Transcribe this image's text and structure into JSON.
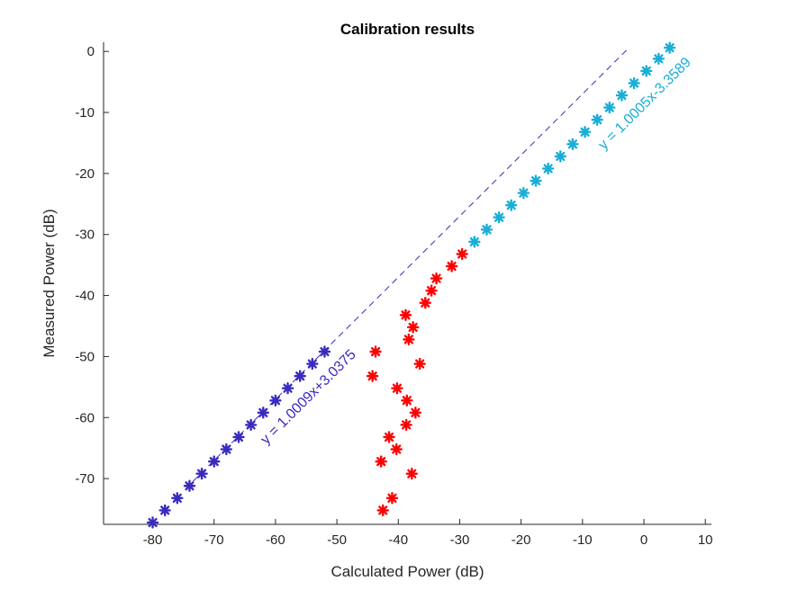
{
  "chart_data": {
    "type": "scatter",
    "title": "Calibration results",
    "xlabel": "Calculated Power (dB)",
    "ylabel": "Measured Power (dB)",
    "xlim": [
      -88,
      11
    ],
    "ylim": [
      -77.5,
      1.5
    ],
    "xticks": [
      -80,
      -70,
      -60,
      -50,
      -40,
      -30,
      -20,
      -10,
      0,
      10
    ],
    "yticks": [
      0,
      -10,
      -20,
      -30,
      -40,
      -50,
      -60,
      -70
    ],
    "grid": "minor-dotted",
    "legend": "none",
    "series": [
      {
        "color": "#3a2bbf",
        "marker": "asterisk",
        "x": [
          -80,
          -78,
          -76,
          -74,
          -72,
          -70,
          -68,
          -66,
          -64,
          -62,
          -60,
          -58,
          -56,
          -54,
          -52
        ],
        "y": [
          -77.2,
          -75.2,
          -73.2,
          -71.2,
          -69.2,
          -67.2,
          -65.2,
          -63.2,
          -61.2,
          -59.2,
          -57.2,
          -55.2,
          -53.2,
          -51.2,
          -49.2
        ]
      },
      {
        "color": "#ff0000",
        "marker": "asterisk",
        "x": [
          -42.5,
          -41,
          -42.8,
          -41.5,
          -40.3,
          -37.8,
          -38.7,
          -37.2,
          -38.6,
          -40.2,
          -44.2,
          -36.5,
          -43.7,
          -38.3,
          -37.6,
          -38.8,
          -35.6,
          -34.6,
          -33.8,
          -31.3,
          -29.6
        ],
        "y": [
          -75.2,
          -73.2,
          -67.2,
          -63.2,
          -65.2,
          -69.2,
          -61.2,
          -59.2,
          -57.2,
          -55.2,
          -53.2,
          -51.2,
          -49.2,
          -47.2,
          -45.2,
          -43.2,
          -41.2,
          -39.2,
          -37.2,
          -35.2,
          -33.2
        ]
      },
      {
        "color": "#1aaed6",
        "marker": "asterisk",
        "x": [
          -27.6,
          -25.6,
          -23.6,
          -21.6,
          -19.6,
          -17.6,
          -15.6,
          -13.6,
          -11.6,
          -9.6,
          -7.6,
          -5.6,
          -3.6,
          -1.6,
          0.4,
          2.4,
          4.2
        ],
        "y": [
          -31.2,
          -29.2,
          -27.2,
          -25.2,
          -23.2,
          -21.2,
          -19.2,
          -17.2,
          -15.2,
          -13.2,
          -11.2,
          -9.2,
          -7.2,
          -5.2,
          -3.2,
          -1.2,
          0.6
        ]
      }
    ],
    "fit_lines": [
      {
        "label": "y = 1.0009x+3.0375",
        "color": "#3a2bbf",
        "style": "dashed",
        "slope": 1.0009,
        "intercept": 3.0375,
        "x_range": [
          -73.4,
          -2.4
        ]
      },
      {
        "label": "y = 1.0005x-3.3589",
        "color": "#1aaed6",
        "style": "none",
        "slope": 1.0005,
        "intercept": -3.3589
      }
    ]
  }
}
